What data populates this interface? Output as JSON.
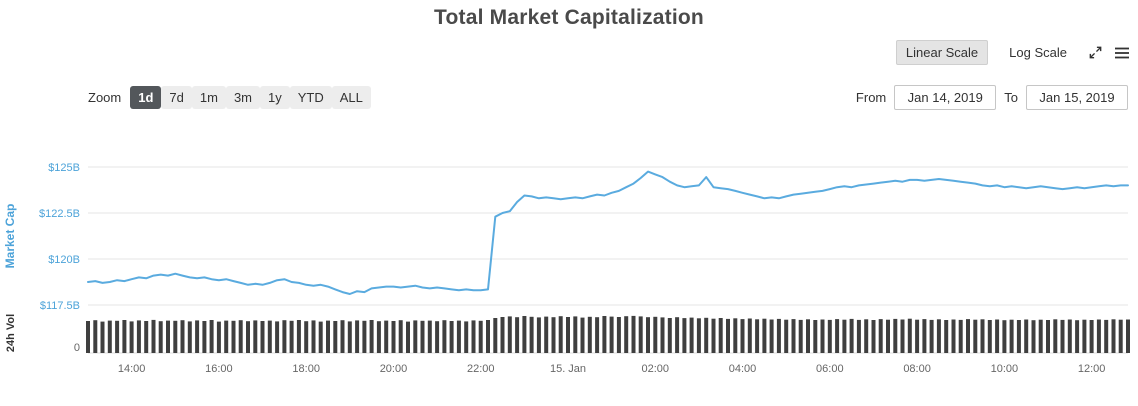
{
  "title": "Total Market Capitalization",
  "toolbar": {
    "linear_scale": "Linear Scale",
    "log_scale": "Log Scale",
    "selected_scale": "Linear Scale",
    "icons": [
      "fullscreen-icon",
      "menu-icon"
    ]
  },
  "zoom": {
    "label": "Zoom",
    "options": [
      "1d",
      "7d",
      "1m",
      "3m",
      "1y",
      "YTD",
      "ALL"
    ],
    "selected": "1d"
  },
  "range": {
    "from_label": "From",
    "from_value": "Jan 14, 2019",
    "to_label": "To",
    "to_value": "Jan 15, 2019"
  },
  "chart_data": {
    "type": "line",
    "title": "Total Market Capitalization",
    "x_start": "2019-01-14 13:00",
    "x_end": "2019-01-15 12:50",
    "x_interval_minutes": 10,
    "x_tick_labels": [
      "14:00",
      "16:00",
      "18:00",
      "20:00",
      "22:00",
      "15. Jan",
      "02:00",
      "04:00",
      "06:00",
      "08:00",
      "10:00",
      "12:00"
    ],
    "x_tick_minutes": [
      60,
      180,
      300,
      420,
      540,
      660,
      780,
      900,
      1020,
      1140,
      1260,
      1380
    ],
    "grid": true,
    "legend": "none",
    "y_axis": {
      "label": "Market Cap",
      "tick_labels": [
        "$125B",
        "$122.5B",
        "$120B",
        "$117.5B"
      ],
      "tick_values_billions": [
        125,
        122.5,
        120,
        117.5
      ],
      "range_billions": [
        116.5,
        126
      ],
      "color": "#4da3d9"
    },
    "volume_axis": {
      "label": "24h Vol",
      "tick_labels": [
        "0"
      ],
      "max_billions": 21
    },
    "series": [
      {
        "name": "Market Cap",
        "type": "line",
        "unit": "USD billions",
        "color": "#5aabdf",
        "values": [
          118.75,
          118.8,
          118.7,
          118.75,
          118.85,
          118.8,
          118.9,
          119.0,
          118.95,
          119.1,
          119.15,
          119.1,
          119.2,
          119.1,
          119.0,
          118.95,
          119.0,
          118.9,
          118.85,
          118.9,
          118.8,
          118.7,
          118.6,
          118.65,
          118.6,
          118.7,
          118.85,
          118.9,
          118.75,
          118.7,
          118.6,
          118.55,
          118.6,
          118.5,
          118.35,
          118.2,
          118.1,
          118.25,
          118.2,
          118.4,
          118.45,
          118.5,
          118.5,
          118.45,
          118.5,
          118.55,
          118.45,
          118.4,
          118.45,
          118.4,
          118.35,
          118.3,
          118.35,
          118.3,
          118.3,
          118.35,
          122.3,
          122.5,
          122.6,
          123.1,
          123.45,
          123.4,
          123.3,
          123.35,
          123.3,
          123.25,
          123.3,
          123.35,
          123.3,
          123.4,
          123.5,
          123.45,
          123.6,
          123.7,
          123.9,
          124.1,
          124.4,
          124.75,
          124.6,
          124.45,
          124.2,
          124.0,
          123.9,
          123.95,
          124.0,
          124.45,
          123.9,
          123.85,
          123.8,
          123.7,
          123.6,
          123.5,
          123.4,
          123.3,
          123.35,
          123.3,
          123.4,
          123.5,
          123.55,
          123.6,
          123.65,
          123.7,
          123.8,
          123.9,
          123.95,
          123.9,
          124.0,
          124.05,
          124.1,
          124.15,
          124.2,
          124.25,
          124.2,
          124.3,
          124.3,
          124.25,
          124.3,
          124.35,
          124.3,
          124.25,
          124.2,
          124.15,
          124.1,
          124.0,
          123.95,
          124.0,
          123.9,
          123.95,
          123.9,
          123.85,
          123.9,
          123.95,
          123.9,
          123.85,
          123.8,
          123.85,
          123.9,
          123.85,
          123.9,
          123.95,
          124.0,
          123.95,
          124.0,
          124.0
        ]
      },
      {
        "name": "24h Vol",
        "type": "column",
        "unit": "USD billions",
        "color": "#3f3f3f",
        "values": [
          16.8,
          17.2,
          16.5,
          17.0,
          16.9,
          17.3,
          16.6,
          17.1,
          16.8,
          17.4,
          16.7,
          17.0,
          16.9,
          17.2,
          16.6,
          17.1,
          16.8,
          17.3,
          16.5,
          17.0,
          16.9,
          17.2,
          16.7,
          17.1,
          16.8,
          17.0,
          16.6,
          17.2,
          16.9,
          17.3,
          16.7,
          17.1,
          16.5,
          17.0,
          16.8,
          17.2,
          16.6,
          17.1,
          16.9,
          17.3,
          16.7,
          17.0,
          16.8,
          17.2,
          16.5,
          17.1,
          16.9,
          17.0,
          16.7,
          17.2,
          16.8,
          17.0,
          16.6,
          17.1,
          16.9,
          17.3,
          18.4,
          18.9,
          19.2,
          18.8,
          19.4,
          19.0,
          18.7,
          19.1,
          18.8,
          19.3,
          18.9,
          19.2,
          18.6,
          19.0,
          18.8,
          19.4,
          19.1,
          18.9,
          19.3,
          19.5,
          19.2,
          18.8,
          19.0,
          18.7,
          18.4,
          18.8,
          18.3,
          18.6,
          18.2,
          18.5,
          18.0,
          18.4,
          17.9,
          18.2,
          17.8,
          18.1,
          17.7,
          18.0,
          17.6,
          17.9,
          17.5,
          17.8,
          17.4,
          17.7,
          17.3,
          17.6,
          17.4,
          17.8,
          17.5,
          17.9,
          17.4,
          17.7,
          17.3,
          17.8,
          17.5,
          17.9,
          17.6,
          18.0,
          17.5,
          17.8,
          17.4,
          17.7,
          17.3,
          17.6,
          17.4,
          17.8,
          17.5,
          17.7,
          17.3,
          17.6,
          17.2,
          17.5,
          17.3,
          17.6,
          17.2,
          17.5,
          17.3,
          17.7,
          17.4,
          17.6,
          17.2,
          17.5,
          17.3,
          17.6,
          17.4,
          17.7,
          17.5,
          17.6
        ]
      }
    ]
  }
}
